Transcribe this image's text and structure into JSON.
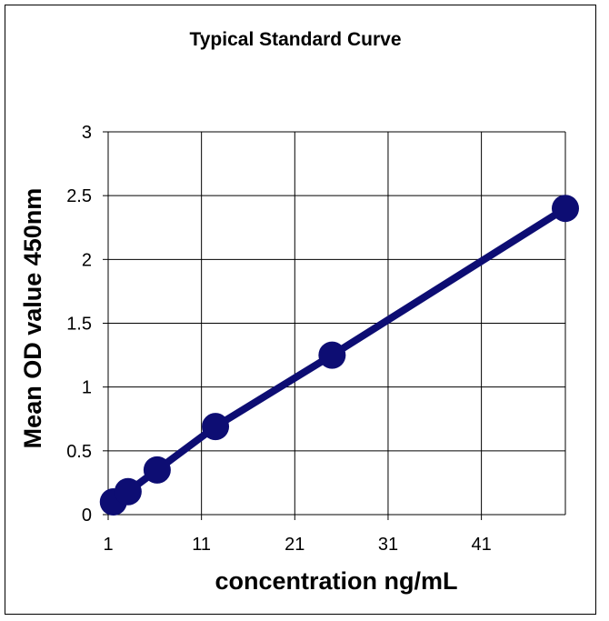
{
  "chart_data": {
    "type": "line",
    "title": "Typical Standard Curve",
    "xlabel": "concentration ng/mL",
    "ylabel": "Mean OD value 450nm",
    "xlim": [
      1,
      50
    ],
    "ylim": [
      0,
      3
    ],
    "x_ticks": [
      1,
      11,
      21,
      31,
      41
    ],
    "y_ticks": [
      0,
      0.5,
      1,
      1.5,
      2,
      2.5,
      3
    ],
    "grid": true,
    "legend": "none",
    "color": "#0d0d73",
    "series": [
      {
        "x": [
          1.56,
          3.13,
          6.25,
          12.5,
          25,
          50
        ],
        "y": [
          0.1,
          0.18,
          0.35,
          0.69,
          1.25,
          2.4
        ]
      }
    ]
  }
}
